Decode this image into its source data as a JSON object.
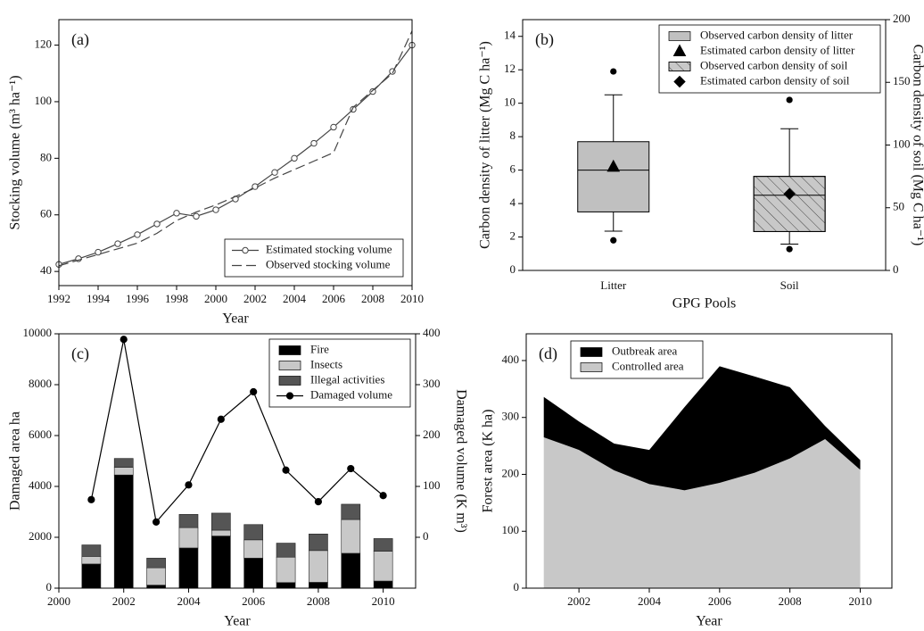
{
  "chart_data": [
    {
      "type": "line",
      "panel_label": "(a)",
      "xlabel": "Year",
      "ylabel": "Stocking volume (m³ ha⁻¹)",
      "x": [
        1992,
        1993,
        1994,
        1995,
        1996,
        1997,
        1998,
        1999,
        2000,
        2001,
        2002,
        2003,
        2004,
        2005,
        2006,
        2007,
        2008,
        2009,
        2010
      ],
      "xlim": [
        1992,
        2010
      ],
      "xticks": [
        1992,
        1994,
        1996,
        1998,
        2000,
        2002,
        2004,
        2006,
        2008,
        2010
      ],
      "ylim": [
        35,
        129
      ],
      "yticks": [
        40,
        60,
        80,
        100,
        120
      ],
      "legend": "lower right",
      "series": [
        {
          "name": "Estimated stocking volume",
          "mark": "line",
          "marker": "open-circle",
          "color": "#444444",
          "values": [
            42.5,
            44.5,
            46.8,
            49.8,
            53,
            56.8,
            60.6,
            59.5,
            61.8,
            65.6,
            70,
            75,
            80,
            85.3,
            91,
            97.3,
            103.6,
            110.7,
            120
          ]
        },
        {
          "name": "Observed stocking volume",
          "mark": "line",
          "dash": true,
          "color": "#444444",
          "values": [
            42,
            44,
            46,
            48,
            50,
            53.5,
            58,
            61,
            63.5,
            66.5,
            69.5,
            73,
            76,
            79,
            82,
            98,
            104,
            110,
            125
          ]
        }
      ]
    },
    {
      "type": "box",
      "panel_label": "(b)",
      "xlabel": "GPG Pools",
      "ylabel": "Carbon density of litter (Mg C ha⁻¹)",
      "y2label": "Carbon density of soil (Mg C ha⁻¹)",
      "categories": [
        "Litter",
        "Soil"
      ],
      "ylim": [
        0,
        15
      ],
      "yticks": [
        0,
        2,
        4,
        6,
        8,
        10,
        12,
        14
      ],
      "y2lim": [
        0,
        200
      ],
      "y2ticks": [
        0,
        50,
        100,
        150,
        200
      ],
      "legend": "upper right",
      "series": [
        {
          "name": "Observed carbon density of litter",
          "mark": "box",
          "color": "#c0c0c0",
          "whisker_low": [
            2.35,
            null
          ],
          "q1": [
            3.5,
            null
          ],
          "median": [
            6.0,
            null
          ],
          "q3": [
            7.7,
            null
          ],
          "whisker_high": [
            10.5,
            null
          ],
          "outliers": [
            [
              11.9,
              1.8
            ],
            []
          ]
        },
        {
          "name": "Estimated carbon density of litter",
          "mark": "point",
          "marker": "triangle",
          "color": "#000000",
          "values": [
            6.2,
            null
          ]
        },
        {
          "name": "Observed carbon density of soil",
          "mark": "box",
          "hatch": true,
          "axis": "y2",
          "color": "#c8c8c8",
          "whisker_low": [
            null,
            21
          ],
          "q1": [
            null,
            31
          ],
          "median": [
            null,
            60
          ],
          "q3": [
            null,
            75
          ],
          "whisker_high": [
            null,
            113
          ],
          "outliers": [
            [],
            [
              136,
              17
            ]
          ]
        },
        {
          "name": "Estimated carbon density of soil",
          "mark": "point",
          "marker": "diamond",
          "axis": "y2",
          "color": "#000000",
          "values": [
            null,
            61
          ]
        }
      ]
    },
    {
      "type": "combo",
      "panel_label": "(c)",
      "xlabel": "Year",
      "ylabel": "Damaged area ha",
      "y2label": "Damaged volume (K m³)",
      "x": [
        2001,
        2002,
        2003,
        2004,
        2005,
        2006,
        2007,
        2008,
        2009,
        2010
      ],
      "xlim": [
        2000,
        2011
      ],
      "xticks": [
        2000,
        2002,
        2004,
        2006,
        2008,
        2010
      ],
      "ylim": [
        0,
        10000
      ],
      "yticks": [
        0,
        2000,
        4000,
        6000,
        8000,
        10000
      ],
      "y2lim": [
        -100,
        400
      ],
      "y2ticks": [
        0,
        100,
        200,
        300,
        400
      ],
      "legend": "upper right",
      "series": [
        {
          "name": "Fire",
          "mark": "bar",
          "color": "#000000",
          "values": [
            950,
            4450,
            120,
            1580,
            2050,
            1180,
            220,
            230,
            1370,
            280
          ]
        },
        {
          "name": "Insects",
          "mark": "bar",
          "color": "#c8c8c8",
          "values": [
            300,
            300,
            680,
            800,
            230,
            720,
            1000,
            1250,
            1330,
            1170
          ]
        },
        {
          "name": "Illegal activities",
          "mark": "bar",
          "color": "#555555",
          "values": [
            450,
            350,
            380,
            520,
            670,
            600,
            550,
            650,
            600,
            500
          ]
        },
        {
          "name": "Damaged volume",
          "mark": "line",
          "marker": "circle",
          "axis": "y2",
          "color": "#000000",
          "values": [
            74,
            389,
            30,
            103,
            232,
            286,
            132,
            70,
            135,
            82
          ]
        }
      ]
    },
    {
      "type": "area",
      "panel_label": "(d)",
      "xlabel": "Year",
      "ylabel": "Forest area (K  ha)",
      "x": [
        2001,
        2002,
        2003,
        2004,
        2005,
        2006,
        2007,
        2008,
        2009,
        2010
      ],
      "xlim": [
        2000.5,
        2010.9
      ],
      "xticks": [
        2002,
        2004,
        2006,
        2008,
        2010
      ],
      "ylim": [
        0,
        447
      ],
      "yticks": [
        0,
        100,
        200,
        300,
        400
      ],
      "legend": "upper left",
      "series": [
        {
          "name": "Outbreak area",
          "mark": "area",
          "color": "#000000",
          "values": [
            71,
            50,
            47,
            60,
            146,
            205,
            169,
            125,
            23,
            17
          ]
        },
        {
          "name": "Controlled area",
          "mark": "area",
          "color": "#c8c8c8",
          "values": [
            265,
            243,
            207,
            183,
            172,
            185,
            203,
            228,
            262,
            208
          ]
        }
      ]
    }
  ]
}
